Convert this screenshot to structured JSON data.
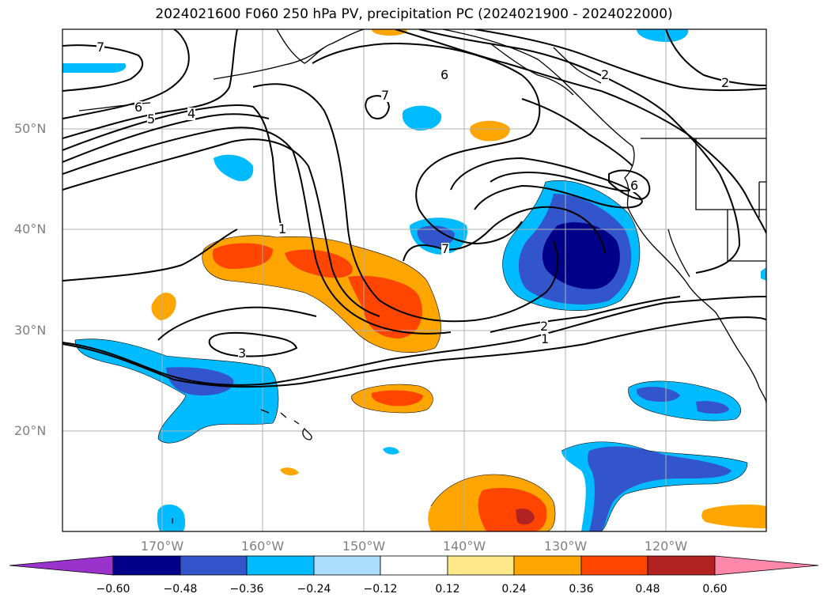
{
  "title": "2024021600 F060 250 hPa PV, precipitation PC (2024021900 - 2024022000)",
  "lat_labels": [
    "50°N",
    "40°N",
    "30°N",
    "20°N"
  ],
  "lon_labels": [
    "170°W",
    "160°W",
    "150°W",
    "140°W",
    "130°W",
    "120°W"
  ],
  "colorbar": {
    "ticks": [
      "−0.60",
      "−0.48",
      "−0.36",
      "−0.24",
      "−0.12",
      "0.12",
      "0.24",
      "0.36",
      "0.48",
      "0.60"
    ],
    "colors": [
      "#9933cc",
      "#000088",
      "#3355cc",
      "#00bbff",
      "#aaddff",
      "#ffffff",
      "#ffe88a",
      "#ffa500",
      "#ff4500",
      "#b22222",
      "#ff88aa"
    ]
  },
  "contour_labels": [
    "7",
    "6",
    "5",
    "4",
    "1",
    "3",
    "7",
    "6",
    "2",
    "2",
    "2",
    "1",
    "7",
    "6"
  ],
  "colors": {
    "gridline": "#b0b0b0",
    "coastline": "#000000",
    "pv_contour": "#000000"
  }
}
